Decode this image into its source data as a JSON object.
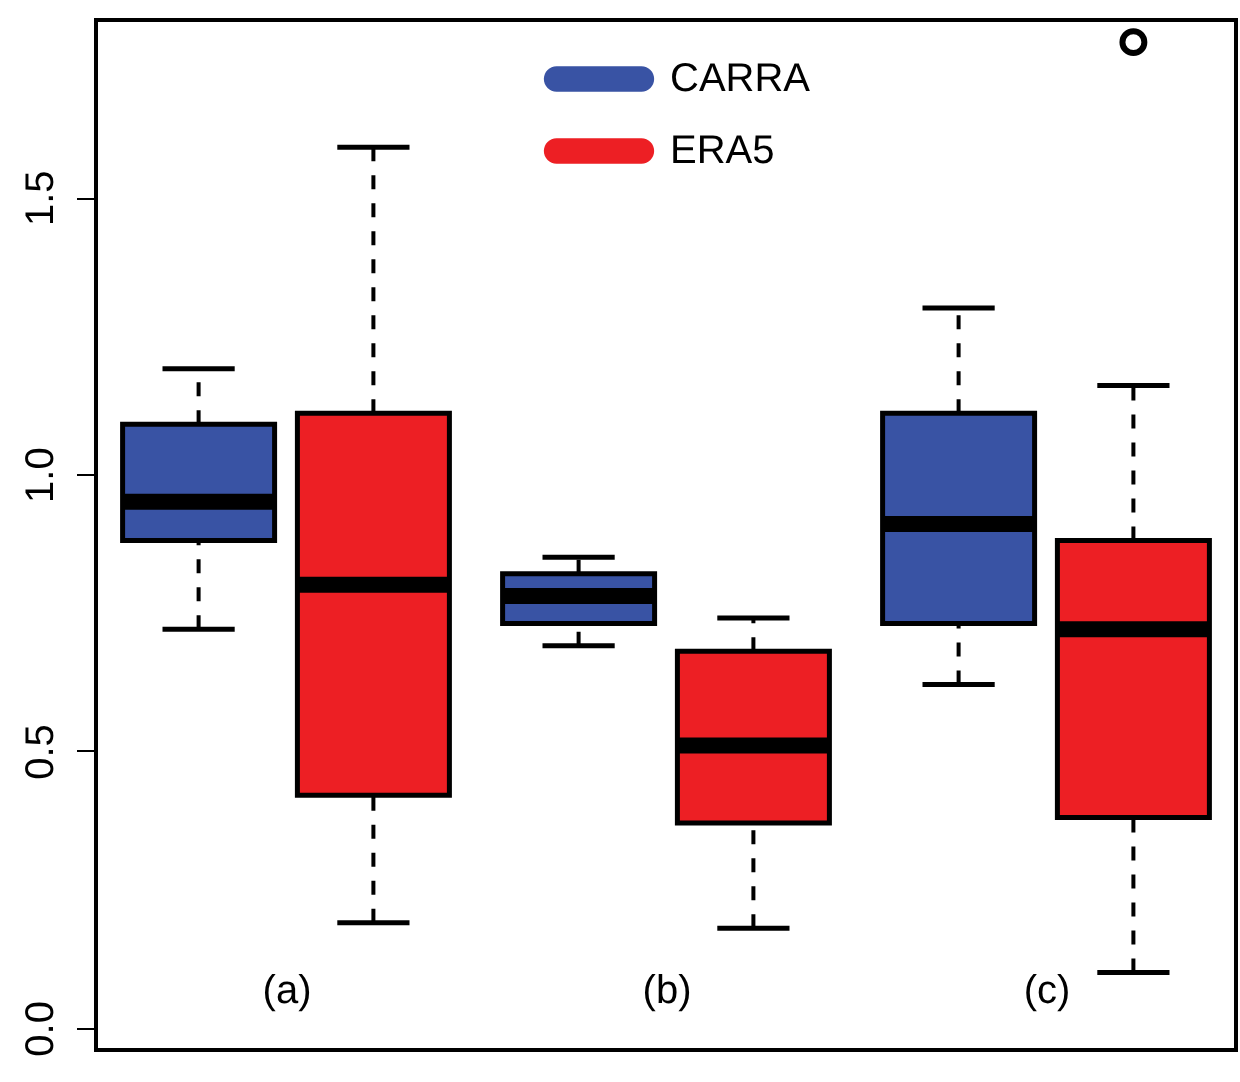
{
  "chart_data": {
    "type": "box",
    "categories": [
      "(a)",
      "(b)",
      "(c)"
    ],
    "series": [
      {
        "name": "CARRA",
        "color": "#3953a4",
        "boxes": [
          {
            "low": 0.72,
            "q1": 0.88,
            "median": 0.95,
            "q3": 1.09,
            "high": 1.19
          },
          {
            "low": 0.69,
            "q1": 0.73,
            "median": 0.78,
            "q3": 0.82,
            "high": 0.85
          },
          {
            "low": 0.62,
            "q1": 0.73,
            "median": 0.91,
            "q3": 1.11,
            "high": 1.3
          }
        ]
      },
      {
        "name": "ERA5",
        "color": "#ed1f24",
        "boxes": [
          {
            "low": 0.19,
            "q1": 0.42,
            "median": 0.8,
            "q3": 1.11,
            "high": 1.59
          },
          {
            "low": 0.18,
            "q1": 0.37,
            "median": 0.51,
            "q3": 0.68,
            "high": 0.74
          },
          {
            "low": 0.1,
            "q1": 0.38,
            "median": 0.72,
            "q3": 0.88,
            "high": 1.16,
            "outliers": [
              1.78
            ]
          }
        ]
      }
    ],
    "ylim": [
      -0.04,
      1.82
    ],
    "yticks": [
      {
        "value": 0,
        "label": "0.0"
      },
      0.5,
      {
        "value": 1,
        "label": "1.0"
      },
      1.5
    ],
    "legend": "top"
  }
}
